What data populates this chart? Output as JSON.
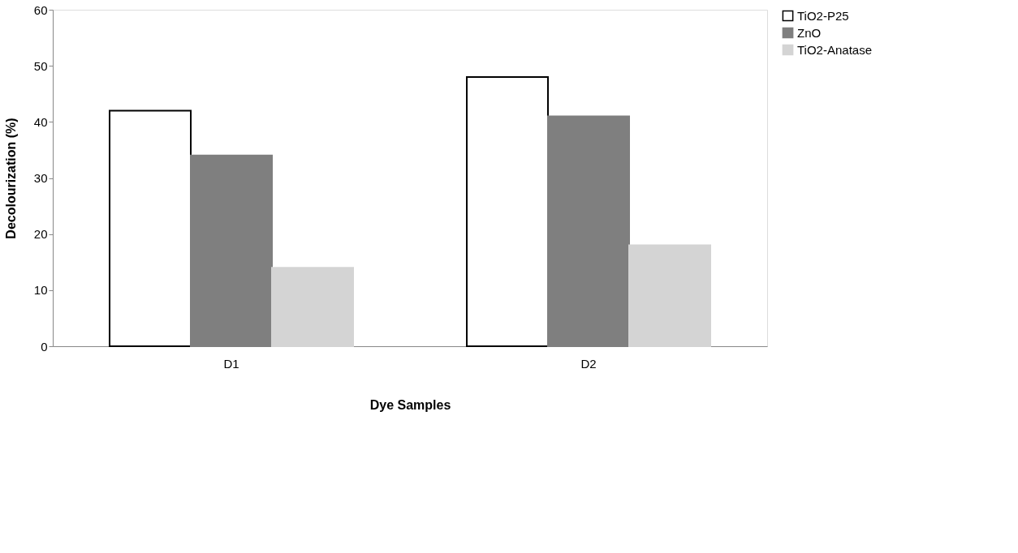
{
  "chart_data": {
    "type": "bar",
    "xlabel": "Dye Samples",
    "ylabel": "Decolourization (%)",
    "categories": [
      "D1",
      "D2"
    ],
    "series": [
      {
        "name": "TiO2-P25",
        "color": "#ffffff",
        "values": [
          42,
          48
        ]
      },
      {
        "name": "ZnO",
        "color": "#7f7f7f",
        "values": [
          34,
          41
        ]
      },
      {
        "name": "TiO2-Anatase",
        "color": "#d4d4d4",
        "values": [
          14,
          18
        ]
      }
    ],
    "ylim": [
      0,
      60
    ],
    "yticks": [
      0,
      10,
      20,
      30,
      40,
      50,
      60
    ],
    "grid": false,
    "legend": "right"
  }
}
